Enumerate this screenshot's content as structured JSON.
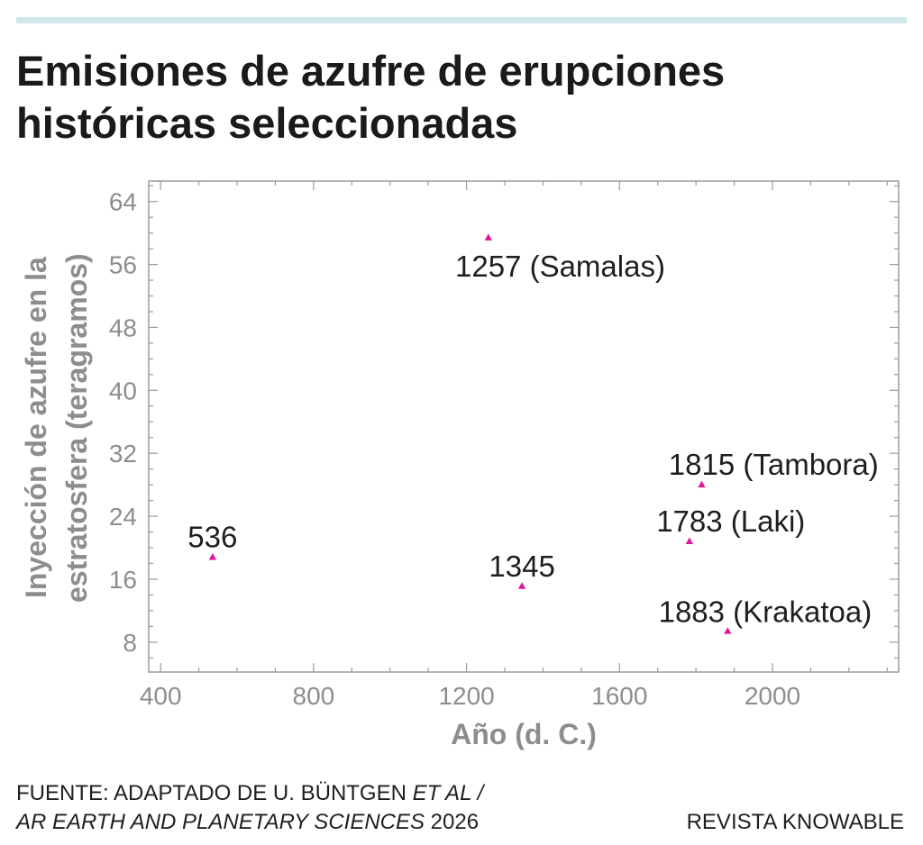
{
  "chart_data": {
    "type": "scatter",
    "title": "Emisiones de azufre de erupciones históricas seleccionadas",
    "xlabel": "Año (d. C.)",
    "ylabel": "Inyección de azufre en la estratosfera (teragramos)",
    "xlim": [
      369,
      2330
    ],
    "ylim": [
      4.2,
      66.6
    ],
    "xticks": [
      400,
      800,
      1200,
      1600,
      2000
    ],
    "yticks": [
      8,
      16,
      24,
      32,
      40,
      48,
      56,
      64
    ],
    "x_minor_tick_step": 100,
    "y_minor_tick_step": 2,
    "grid": false,
    "marker": "triangle",
    "marker_color": "#e0169b",
    "points": [
      {
        "x": 536,
        "y": 18.8,
        "label": "536",
        "label_position": "above"
      },
      {
        "x": 1257,
        "y": 59.4,
        "label": "1257 (Samalas)",
        "label_position": "below"
      },
      {
        "x": 1345,
        "y": 15.1,
        "label": "1345",
        "label_position": "above"
      },
      {
        "x": 1783,
        "y": 20.8,
        "label": "1783 (Laki)",
        "label_position": "above"
      },
      {
        "x": 1815,
        "y": 28.0,
        "label": "1815 (Tambora)",
        "label_position": "above"
      },
      {
        "x": 1883,
        "y": 9.4,
        "label": "1883 (Krakatoa)",
        "label_position": "above-left"
      }
    ]
  },
  "footer": {
    "source": {
      "line1_text": "FUENTE: ADAPTADO DE U. BÜNTGEN",
      "line1_italic": "ET AL /",
      "line2_italic": "AR EARTH AND PLANETARY SCIENCES",
      "line2_text": "2026"
    },
    "credit": "REVISTA KNOWABLE"
  },
  "colors": {
    "accent_bar": "#cfe9ea",
    "axis_text": "#8d8d8d",
    "text": "#1a1a1a"
  }
}
